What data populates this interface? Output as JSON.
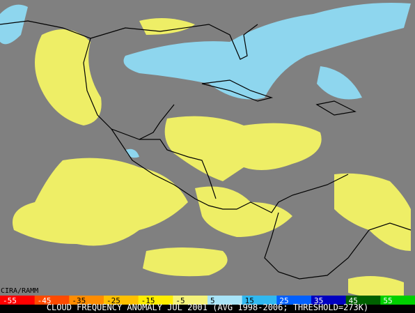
{
  "credit": "CIRA/RAMM",
  "colorbar": [
    {
      "label": "-55",
      "color": "#ff0000"
    },
    {
      "label": "-45",
      "color": "#ff4a00"
    },
    {
      "label": "-35",
      "color": "#ff8c00"
    },
    {
      "label": "-25",
      "color": "#ffc000"
    },
    {
      "label": "-15",
      "color": "#ffee00"
    },
    {
      "label": "-5",
      "color": "#f4f27a"
    },
    {
      "label": "5",
      "color": "#a8e4f8"
    },
    {
      "label": "15",
      "color": "#30b8f0"
    },
    {
      "label": "25",
      "color": "#0060ff"
    },
    {
      "label": "35",
      "color": "#0000c0"
    },
    {
      "label": "45",
      "color": "#006000"
    },
    {
      "label": "55",
      "color": "#00d000"
    }
  ],
  "caption": "CLOUD FREQUENCY ANOMALY JUL 2001 (AVG 1998-2006; THRESHOLD=273K)"
}
